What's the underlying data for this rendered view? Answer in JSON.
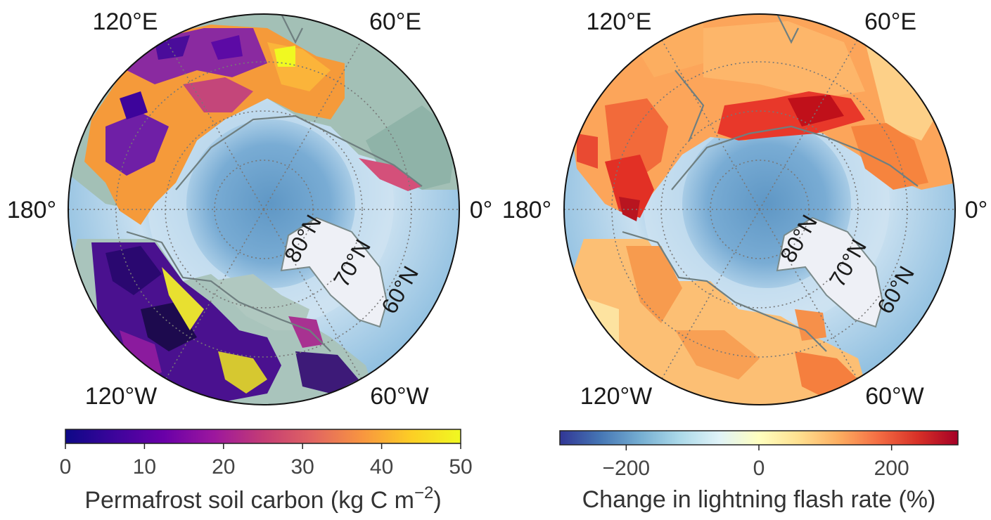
{
  "maps": [
    {
      "id": "left",
      "lon_labels": {
        "top_left": "120°E",
        "top_right": "60°E",
        "left": "180°",
        "right": "0°",
        "bottom_left": "120°W",
        "bottom_right": "60°W"
      },
      "lat_labels": [
        "80°N",
        "70°N",
        "60°N"
      ],
      "colorbar": {
        "ticks": [
          "0",
          "10",
          "20",
          "30",
          "40",
          "50"
        ],
        "tick_values": [
          0,
          10,
          20,
          30,
          40,
          50
        ],
        "range": [
          0,
          50
        ],
        "label_main": "Permafrost soil carbon (kg C m",
        "label_sup": "−2",
        "label_end": ")",
        "colormap": "plasma",
        "colors": [
          "#0d0887",
          "#3d049b",
          "#6a00a8",
          "#9c179e",
          "#c43c75",
          "#e16462",
          "#f89540",
          "#fcce25",
          "#f0f921"
        ]
      }
    },
    {
      "id": "right",
      "lon_labels": {
        "top_left": "120°E",
        "top_right": "60°E",
        "left": "180°",
        "right": "0°",
        "bottom_left": "120°W",
        "bottom_right": "60°W"
      },
      "lat_labels": [
        "80°N",
        "70°N",
        "60°N"
      ],
      "colorbar": {
        "ticks": [
          "−200",
          "0",
          "200"
        ],
        "tick_values": [
          -200,
          0,
          200
        ],
        "range": [
          -300,
          300
        ],
        "label": "Change in lightning flash rate (%)",
        "colormap": "RdYlBu_r",
        "colors": [
          "#313695",
          "#4575b4",
          "#74add1",
          "#abd9e9",
          "#e0f3f8",
          "#ffffbf",
          "#fee090",
          "#fdae61",
          "#f46d43",
          "#d73027",
          "#a50026"
        ]
      }
    }
  ],
  "colors": {
    "ocean": "#7fb3d8",
    "ice": "#d6e6f2",
    "land": "#a9c4bc",
    "greenland": "#eef0f6",
    "coast": "#6f7f80"
  }
}
